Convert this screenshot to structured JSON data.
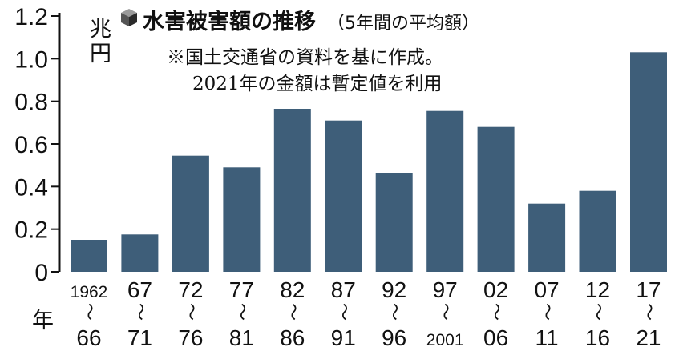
{
  "chart_data": {
    "type": "bar",
    "title": "水害被害額の推移",
    "subtitle": "（5年間の平均額）",
    "notes": [
      "※国土交通省の資料を基に作成。",
      "2021年の金額は暫定値を利用"
    ],
    "ylabel": "兆円",
    "xlabel": "年",
    "ylim": [
      0,
      1.2
    ],
    "yticks": [
      "0",
      "0.2",
      "0.4",
      "0.6",
      "0.8",
      "1.0",
      "1.2"
    ],
    "categories": [
      {
        "top": "1962",
        "bottom": "66"
      },
      {
        "top": "67",
        "bottom": "71"
      },
      {
        "top": "72",
        "bottom": "76"
      },
      {
        "top": "77",
        "bottom": "81"
      },
      {
        "top": "82",
        "bottom": "86"
      },
      {
        "top": "87",
        "bottom": "91"
      },
      {
        "top": "92",
        "bottom": "96"
      },
      {
        "top": "97",
        "bottom": "2001"
      },
      {
        "top": "02",
        "bottom": "06"
      },
      {
        "top": "07",
        "bottom": "11"
      },
      {
        "top": "12",
        "bottom": "16"
      },
      {
        "top": "17",
        "bottom": "21"
      }
    ],
    "values": [
      0.15,
      0.175,
      0.545,
      0.49,
      0.765,
      0.71,
      0.465,
      0.755,
      0.68,
      0.32,
      0.38,
      1.03
    ],
    "range_mark": "〜",
    "bar_color": "#3e5e79",
    "grid": false
  }
}
